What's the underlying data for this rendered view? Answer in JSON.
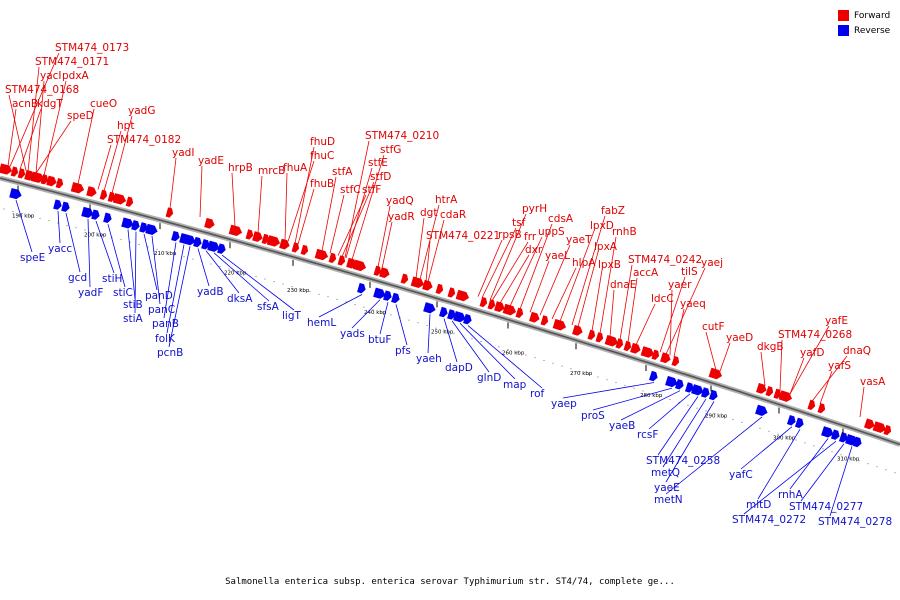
{
  "caption": "Salmonella enterica subsp. enterica serovar Typhimurium str. ST4/74, complete ge...",
  "legend": [
    {
      "label": "Forward",
      "color": "#ee0000"
    },
    {
      "label": "Reverse",
      "color": "#0000ee"
    }
  ],
  "colors": {
    "forward": "#ee0000",
    "reverse": "#0000ee",
    "backbone": "#8c8c8c"
  },
  "ticks": [
    "190 kbp",
    "200 kbp",
    "210 kbp",
    "220 kbp",
    "230 kbp",
    "240 kbp",
    "250 kbp",
    "260 kbp",
    "270 kbp",
    "280 kbp",
    "290 kbp",
    "300 kbp",
    "310 kbp"
  ],
  "forward_genes": [
    "STM474_0173",
    "STM474_0171",
    "yacI",
    "pdxA",
    "acnB",
    "kdgT",
    "STM474_0168",
    "speD",
    "cueO",
    "yadG",
    "hpt",
    "STM474_0182",
    "yadI",
    "yadE",
    "hrpB",
    "mrcB",
    "fhuD",
    "fhuC",
    "fhuA",
    "fhuB",
    "STM474_0210",
    "stfG",
    "stfE",
    "stfD",
    "stfA",
    "stfC",
    "stfF",
    "yadQ",
    "yadR",
    "htrA",
    "dgt",
    "cdaR",
    "STM474_0221",
    "pyrH",
    "tsf",
    "rpsB",
    "frr",
    "dxr",
    "uppS",
    "cdsA",
    "yaeL",
    "yaeT",
    "hlpA",
    "lpxD",
    "fabZ",
    "lpxA",
    "lpxB",
    "rnhB",
    "dnaE",
    "STM474_0242",
    "accA",
    "ldcC",
    "tilS",
    "yaej",
    "yaer",
    "yaeq",
    "cutF",
    "yaeD",
    "dkgB",
    "yafE",
    "STM474_0268",
    "yafD",
    "dnaQ",
    "yafS",
    "vasA"
  ],
  "reverse_genes": [
    "speE",
    "yacc",
    "gcd",
    "yadF",
    "stiH",
    "stiC",
    "stiB",
    "stiA",
    "panD",
    "panC",
    "panB",
    "folK",
    "pcnB",
    "yadB",
    "dksA",
    "sfsA",
    "ligT",
    "hemL",
    "yads",
    "btuF",
    "pfs",
    "yaeh",
    "dapD",
    "glnD",
    "map",
    "rof",
    "yaep",
    "proS",
    "yaeB",
    "rcsF",
    "STM474_0258",
    "metQ",
    "yaeE",
    "metN",
    "yafC",
    "mltD",
    "rnhA",
    "STM474_0272",
    "STM474_0277",
    "STM474_0278"
  ]
}
